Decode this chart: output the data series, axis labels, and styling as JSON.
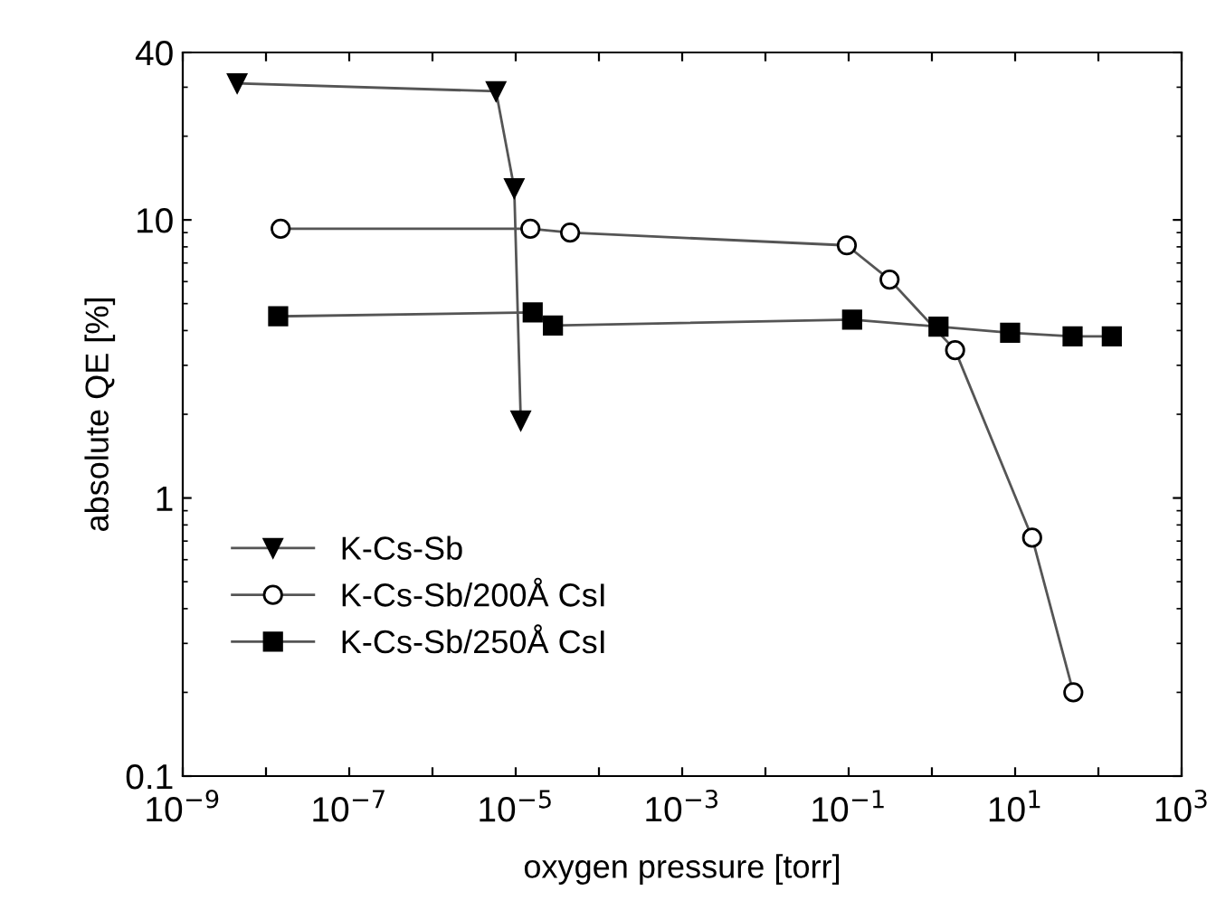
{
  "chart_data": {
    "type": "line",
    "xlabel": "oxygen pressure [torr]",
    "ylabel": "absolute QE [%]",
    "log": "xy",
    "xlim": [
      1e-09,
      1000
    ],
    "ylim": [
      0.1,
      40
    ],
    "xticks": [
      {
        "value": 1e-09,
        "label": "10$^{−9}$"
      },
      {
        "value": 1e-08,
        "label": null
      },
      {
        "value": 1e-07,
        "label": "10$^{−7}$"
      },
      {
        "value": 1e-06,
        "label": null
      },
      {
        "value": 1e-05,
        "label": "10$^{−5}$"
      },
      {
        "value": 0.0001,
        "label": null
      },
      {
        "value": 0.001,
        "label": "10$^{−3}$"
      },
      {
        "value": 0.01,
        "label": null
      },
      {
        "value": 0.1,
        "label": "10$^{−1}$"
      },
      {
        "value": 1,
        "label": null
      },
      {
        "value": 10,
        "label": "10$^{1}$"
      },
      {
        "value": 100,
        "label": null
      },
      {
        "value": 1000,
        "label": "10$^{3}$"
      }
    ],
    "yticks": [
      0.1,
      1,
      10,
      40
    ],
    "grid": false,
    "legend": "bottom left",
    "line_style": "solid",
    "series": [
      {
        "name": "K-Cs-Sb",
        "color": "#000000",
        "marker": "triangle",
        "x": [
          4.5e-09,
          5.8e-06,
          9.6e-06,
          1.15e-05
        ],
        "values": [
          31,
          29,
          13,
          1.9
        ]
      },
      {
        "name": "K-Cs-Sb/200Å CsI",
        "color": "#000000",
        "marker": "circle",
        "x": [
          1.5e-08,
          1.5e-05,
          4.5e-05,
          0.095,
          0.31,
          1.9,
          16,
          50
        ],
        "values": [
          9.3,
          9.3,
          9.0,
          8.1,
          6.1,
          3.4,
          0.72,
          0.2
        ]
      },
      {
        "name": "K-Cs-Sb/250Å CsI",
        "color": "#000000",
        "marker": "square",
        "x": [
          1.4e-08,
          1.6e-05,
          2.8e-05,
          0.11,
          1.2,
          8.7,
          49,
          145
        ],
        "values": [
          4.5,
          4.65,
          4.17,
          4.38,
          4.13,
          3.93,
          3.81,
          3.81
        ]
      }
    ]
  }
}
